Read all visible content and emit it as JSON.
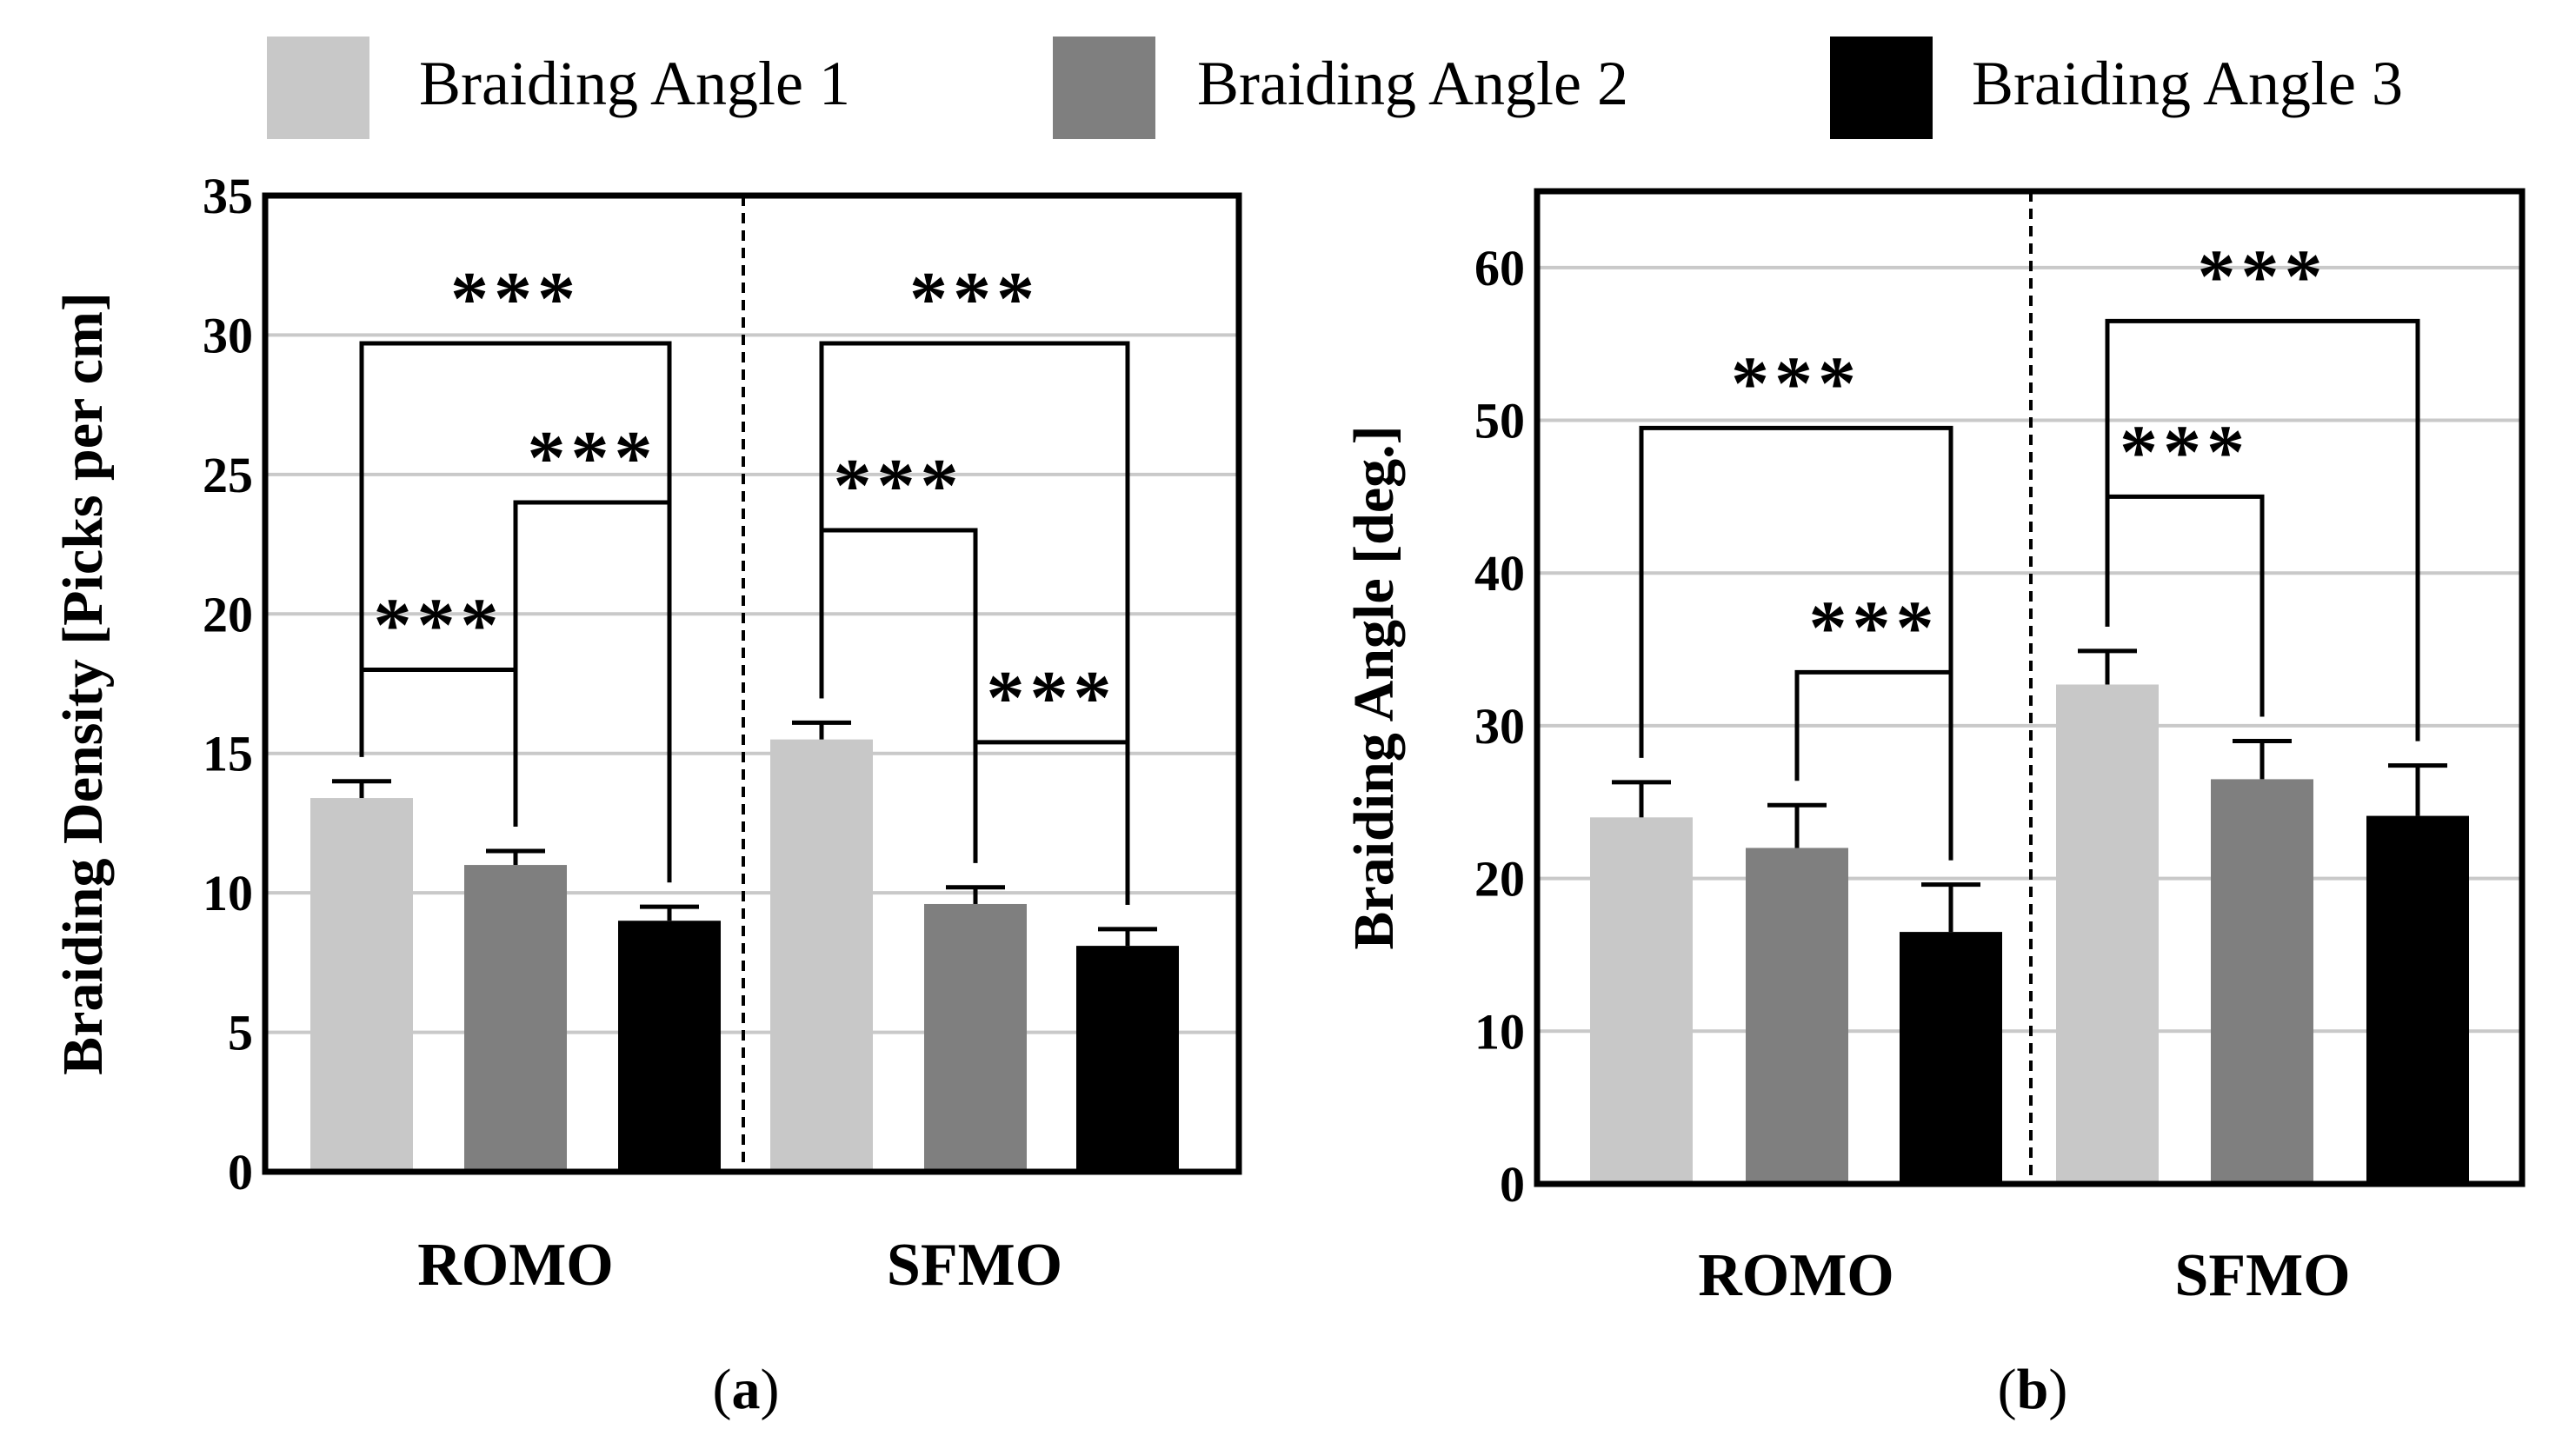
{
  "legend": {
    "entries": [
      {
        "label": "Braiding Angle 1",
        "color": "#c8c8c8"
      },
      {
        "label": "Braiding Angle 2",
        "color": "#7f7f7f"
      },
      {
        "label": "Braiding Angle 3",
        "color": "#000000"
      }
    ]
  },
  "chart_data": [
    {
      "type": "bar",
      "panel_label": "(a)",
      "panel_letter": "a",
      "ylabel": "Braiding Density [Picks per cm]",
      "ylim": [
        0,
        35
      ],
      "yticks": [
        "0",
        "5",
        "10",
        "15",
        "20",
        "25",
        "30",
        "35"
      ],
      "categories": [
        "ROMO",
        "SFMO"
      ],
      "series": [
        {
          "name": "Braiding Angle 1",
          "values": [
            13.4,
            15.5
          ],
          "errors": [
            0.6,
            0.6
          ]
        },
        {
          "name": "Braiding Angle 2",
          "values": [
            11.0,
            9.6
          ],
          "errors": [
            0.5,
            0.6
          ]
        },
        {
          "name": "Braiding Angle 3",
          "values": [
            9.0,
            8.1
          ],
          "errors": [
            0.5,
            0.6
          ]
        }
      ],
      "significance": [
        {
          "group": 0,
          "from": 0,
          "to": 1,
          "level": 18,
          "label": "***"
        },
        {
          "group": 0,
          "from": 1,
          "to": 2,
          "level": 24,
          "label": "***"
        },
        {
          "group": 0,
          "from": 0,
          "to": 2,
          "level": 29.7,
          "label": "***"
        },
        {
          "group": 1,
          "from": 0,
          "to": 1,
          "level": 23,
          "label": "***"
        },
        {
          "group": 1,
          "from": 1,
          "to": 2,
          "level": 15.4,
          "label": "***"
        },
        {
          "group": 1,
          "from": 0,
          "to": 2,
          "level": 29.7,
          "label": "***"
        }
      ]
    },
    {
      "type": "bar",
      "panel_label": "(b)",
      "panel_letter": "b",
      "ylabel": "Braiding Angle [deg.]",
      "ylim": [
        0,
        65
      ],
      "yticks": [
        "0",
        "10",
        "20",
        "30",
        "40",
        "50",
        "60"
      ],
      "categories": [
        "ROMO",
        "SFMO"
      ],
      "series": [
        {
          "name": "Braiding Angle 1",
          "values": [
            24.0,
            32.7
          ],
          "errors": [
            2.3,
            2.2
          ]
        },
        {
          "name": "Braiding Angle 2",
          "values": [
            22.0,
            26.5
          ],
          "errors": [
            2.8,
            2.5
          ]
        },
        {
          "name": "Braiding Angle 3",
          "values": [
            16.5,
            24.1
          ],
          "errors": [
            3.1,
            3.3
          ]
        }
      ],
      "significance": [
        {
          "group": 0,
          "from": 0,
          "to": 2,
          "level": 49.5,
          "label": "***"
        },
        {
          "group": 0,
          "from": 1,
          "to": 2,
          "level": 33.5,
          "label": "***"
        },
        {
          "group": 1,
          "from": 0,
          "to": 1,
          "level": 45,
          "label": "***"
        },
        {
          "group": 1,
          "from": 0,
          "to": 2,
          "level": 56.5,
          "label": "***"
        }
      ]
    }
  ]
}
